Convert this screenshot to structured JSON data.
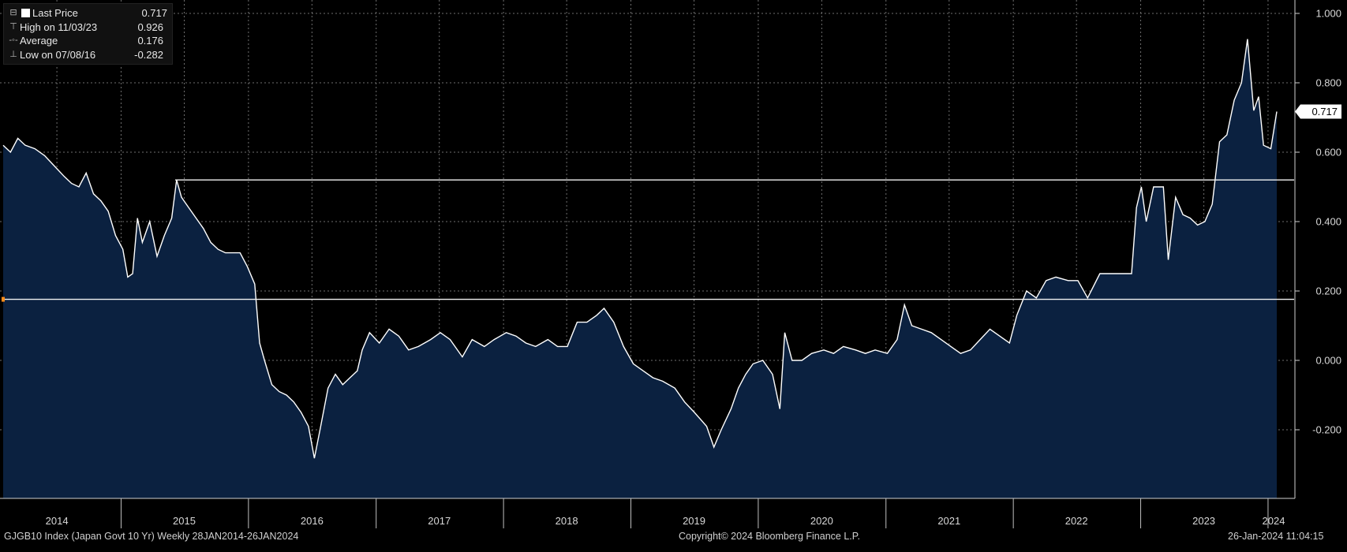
{
  "chart_data": {
    "type": "area",
    "title": "",
    "xlabel": "",
    "ylabel": "",
    "x_axis_years": [
      "2014",
      "2015",
      "2016",
      "2017",
      "2018",
      "2019",
      "2020",
      "2021",
      "2022",
      "2023",
      "2024"
    ],
    "y_ticks": [
      "1.000",
      "0.800",
      "0.600",
      "0.400",
      "0.200",
      "0.000",
      "-0.200"
    ],
    "ylim": [
      -0.4,
      1.04
    ],
    "grid": true,
    "y_axis_side": "right",
    "series": [
      {
        "values_description_free": true,
        "points": [
          [
            "2014-01-28",
            0.62
          ],
          [
            "2014-02-18",
            0.6
          ],
          [
            "2014-03-11",
            0.64
          ],
          [
            "2014-04-01",
            0.62
          ],
          [
            "2014-04-29",
            0.61
          ],
          [
            "2014-05-27",
            0.59
          ],
          [
            "2014-06-24",
            0.56
          ],
          [
            "2014-07-22",
            0.53
          ],
          [
            "2014-08-12",
            0.51
          ],
          [
            "2014-09-02",
            0.5
          ],
          [
            "2014-09-23",
            0.54
          ],
          [
            "2014-10-14",
            0.48
          ],
          [
            "2014-11-04",
            0.46
          ],
          [
            "2014-11-25",
            0.43
          ],
          [
            "2014-12-16",
            0.36
          ],
          [
            "2015-01-06",
            0.32
          ],
          [
            "2015-01-20",
            0.24
          ],
          [
            "2015-02-03",
            0.25
          ],
          [
            "2015-02-17",
            0.41
          ],
          [
            "2015-03-03",
            0.34
          ],
          [
            "2015-03-24",
            0.4
          ],
          [
            "2015-04-14",
            0.3
          ],
          [
            "2015-05-05",
            0.36
          ],
          [
            "2015-05-26",
            0.41
          ],
          [
            "2015-06-09",
            0.52
          ],
          [
            "2015-06-23",
            0.47
          ],
          [
            "2015-07-14",
            0.44
          ],
          [
            "2015-08-04",
            0.41
          ],
          [
            "2015-08-25",
            0.38
          ],
          [
            "2015-09-15",
            0.34
          ],
          [
            "2015-10-06",
            0.32
          ],
          [
            "2015-10-27",
            0.31
          ],
          [
            "2015-11-17",
            0.31
          ],
          [
            "2015-12-08",
            0.31
          ],
          [
            "2015-12-29",
            0.27
          ],
          [
            "2016-01-19",
            0.22
          ],
          [
            "2016-02-02",
            0.05
          ],
          [
            "2016-02-16",
            0.0
          ],
          [
            "2016-03-08",
            -0.07
          ],
          [
            "2016-03-29",
            -0.09
          ],
          [
            "2016-04-19",
            -0.1
          ],
          [
            "2016-05-10",
            -0.12
          ],
          [
            "2016-05-31",
            -0.15
          ],
          [
            "2016-06-21",
            -0.19
          ],
          [
            "2016-07-08",
            -0.282
          ],
          [
            "2016-07-26",
            -0.19
          ],
          [
            "2016-08-16",
            -0.08
          ],
          [
            "2016-09-06",
            -0.04
          ],
          [
            "2016-09-27",
            -0.07
          ],
          [
            "2016-10-18",
            -0.05
          ],
          [
            "2016-11-08",
            -0.03
          ],
          [
            "2016-11-22",
            0.03
          ],
          [
            "2016-12-13",
            0.08
          ],
          [
            "2017-01-10",
            0.05
          ],
          [
            "2017-02-07",
            0.09
          ],
          [
            "2017-03-07",
            0.07
          ],
          [
            "2017-04-04",
            0.03
          ],
          [
            "2017-05-02",
            0.04
          ],
          [
            "2017-06-06",
            0.06
          ],
          [
            "2017-07-04",
            0.08
          ],
          [
            "2017-08-01",
            0.06
          ],
          [
            "2017-09-05",
            0.01
          ],
          [
            "2017-10-03",
            0.06
          ],
          [
            "2017-11-07",
            0.04
          ],
          [
            "2017-12-05",
            0.06
          ],
          [
            "2018-01-09",
            0.08
          ],
          [
            "2018-02-06",
            0.07
          ],
          [
            "2018-03-06",
            0.05
          ],
          [
            "2018-04-03",
            0.04
          ],
          [
            "2018-05-08",
            0.06
          ],
          [
            "2018-06-05",
            0.04
          ],
          [
            "2018-07-03",
            0.04
          ],
          [
            "2018-07-31",
            0.11
          ],
          [
            "2018-08-28",
            0.11
          ],
          [
            "2018-09-25",
            0.13
          ],
          [
            "2018-10-16",
            0.15
          ],
          [
            "2018-11-13",
            0.11
          ],
          [
            "2018-12-11",
            0.04
          ],
          [
            "2019-01-08",
            -0.01
          ],
          [
            "2019-02-05",
            -0.03
          ],
          [
            "2019-03-05",
            -0.05
          ],
          [
            "2019-04-02",
            -0.06
          ],
          [
            "2019-05-07",
            -0.08
          ],
          [
            "2019-06-04",
            -0.12
          ],
          [
            "2019-07-02",
            -0.15
          ],
          [
            "2019-08-06",
            -0.19
          ],
          [
            "2019-08-27",
            -0.25
          ],
          [
            "2019-09-17",
            -0.2
          ],
          [
            "2019-10-15",
            -0.14
          ],
          [
            "2019-11-05",
            -0.08
          ],
          [
            "2019-11-26",
            -0.04
          ],
          [
            "2019-12-17",
            -0.01
          ],
          [
            "2020-01-14",
            0.0
          ],
          [
            "2020-02-11",
            -0.04
          ],
          [
            "2020-03-03",
            -0.14
          ],
          [
            "2020-03-17",
            0.08
          ],
          [
            "2020-04-07",
            0.0
          ],
          [
            "2020-05-05",
            0.0
          ],
          [
            "2020-06-02",
            0.02
          ],
          [
            "2020-07-07",
            0.03
          ],
          [
            "2020-08-04",
            0.02
          ],
          [
            "2020-09-01",
            0.04
          ],
          [
            "2020-10-06",
            0.03
          ],
          [
            "2020-11-03",
            0.02
          ],
          [
            "2020-12-01",
            0.03
          ],
          [
            "2021-01-05",
            0.02
          ],
          [
            "2021-02-02",
            0.06
          ],
          [
            "2021-02-23",
            0.16
          ],
          [
            "2021-03-16",
            0.1
          ],
          [
            "2021-04-13",
            0.09
          ],
          [
            "2021-05-11",
            0.08
          ],
          [
            "2021-06-08",
            0.06
          ],
          [
            "2021-07-06",
            0.04
          ],
          [
            "2021-08-03",
            0.02
          ],
          [
            "2021-08-31",
            0.03
          ],
          [
            "2021-09-28",
            0.06
          ],
          [
            "2021-10-26",
            0.09
          ],
          [
            "2021-11-23",
            0.07
          ],
          [
            "2021-12-21",
            0.05
          ],
          [
            "2022-01-11",
            0.13
          ],
          [
            "2022-02-08",
            0.2
          ],
          [
            "2022-03-08",
            0.18
          ],
          [
            "2022-04-05",
            0.23
          ],
          [
            "2022-05-03",
            0.24
          ],
          [
            "2022-06-07",
            0.23
          ],
          [
            "2022-07-05",
            0.23
          ],
          [
            "2022-08-02",
            0.18
          ],
          [
            "2022-09-06",
            0.25
          ],
          [
            "2022-10-04",
            0.25
          ],
          [
            "2022-11-01",
            0.25
          ],
          [
            "2022-12-06",
            0.25
          ],
          [
            "2022-12-20",
            0.44
          ],
          [
            "2023-01-03",
            0.5
          ],
          [
            "2023-01-17",
            0.4
          ],
          [
            "2023-02-07",
            0.5
          ],
          [
            "2023-03-07",
            0.5
          ],
          [
            "2023-03-21",
            0.29
          ],
          [
            "2023-04-11",
            0.47
          ],
          [
            "2023-05-02",
            0.42
          ],
          [
            "2023-05-23",
            0.41
          ],
          [
            "2023-06-13",
            0.39
          ],
          [
            "2023-07-04",
            0.4
          ],
          [
            "2023-07-25",
            0.45
          ],
          [
            "2023-08-15",
            0.63
          ],
          [
            "2023-09-05",
            0.65
          ],
          [
            "2023-09-26",
            0.75
          ],
          [
            "2023-10-17",
            0.8
          ],
          [
            "2023-11-03",
            0.926
          ],
          [
            "2023-11-21",
            0.72
          ],
          [
            "2023-12-05",
            0.76
          ],
          [
            "2023-12-19",
            0.62
          ],
          [
            "2024-01-09",
            0.61
          ],
          [
            "2024-01-26",
            0.717
          ]
        ]
      }
    ],
    "lines": {
      "average": 0.176,
      "high_level": 0.52
    },
    "last_price_tag": "0.717"
  },
  "legend": {
    "last_price_label": "Last Price",
    "last_price_value": "0.717",
    "high_label": "High on 11/03/23",
    "high_value": "0.926",
    "average_label": "Average",
    "average_value": "0.176",
    "low_label": "Low on 07/08/16",
    "low_value": "-0.282"
  },
  "footer": {
    "left": "GJGB10 Index (Japan Govt 10 Yr)  Weekly 28JAN2014-26JAN2024",
    "center": "Copyright© 2024 Bloomberg Finance L.P.",
    "right": "26-Jan-2024 11:04:15"
  },
  "colors": {
    "background": "#000000",
    "fill": "#0b2140",
    "line": "#ffffff",
    "grid": "#8a8a8a",
    "marker": "#ff8c1a"
  }
}
